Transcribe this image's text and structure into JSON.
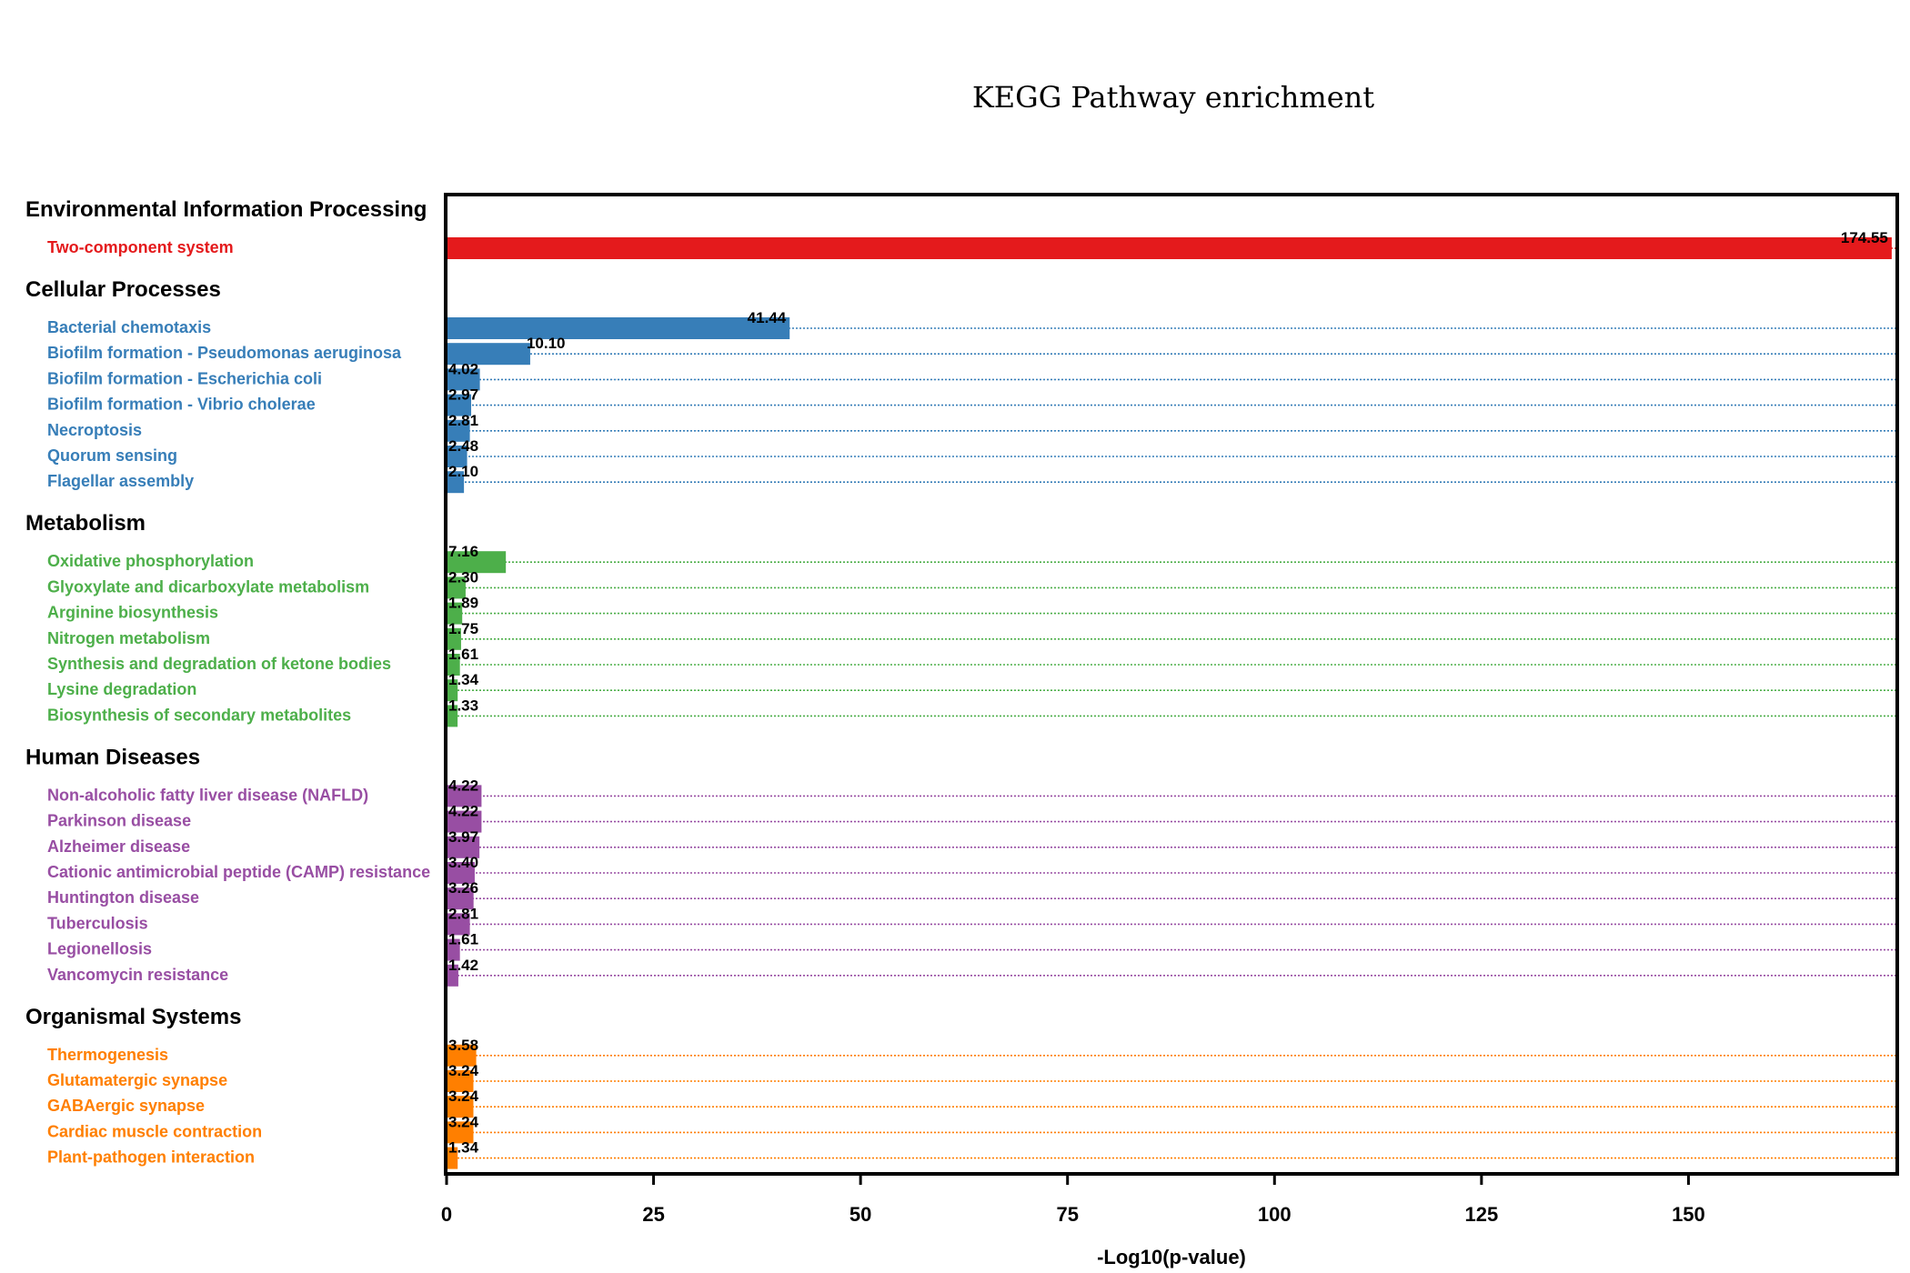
{
  "chart_data": {
    "type": "bar",
    "orientation": "horizontal",
    "title": "KEGG Pathway enrichment",
    "xlabel": "-Log10(p-value)",
    "xlim": [
      0,
      175
    ],
    "xticks": [
      0,
      25,
      50,
      75,
      100,
      125,
      150
    ],
    "grid": false,
    "groups": [
      {
        "name": "Environmental Information Processing",
        "color": "#e41a1c",
        "items": [
          {
            "label": "Two-component system",
            "value": 174.55,
            "value_label": "174.55"
          }
        ]
      },
      {
        "name": "Cellular Processes",
        "color": "#377eb8",
        "items": [
          {
            "label": "Bacterial chemotaxis",
            "value": 41.44,
            "value_label": "41.44"
          },
          {
            "label": "Biofilm formation - Pseudomonas aeruginosa",
            "value": 10.1,
            "value_label": "10.10"
          },
          {
            "label": "Biofilm formation - Escherichia coli",
            "value": 4.02,
            "value_label": "4.02"
          },
          {
            "label": "Biofilm formation - Vibrio cholerae",
            "value": 2.97,
            "value_label": "2.97"
          },
          {
            "label": "Necroptosis",
            "value": 2.81,
            "value_label": "2.81"
          },
          {
            "label": "Quorum sensing",
            "value": 2.48,
            "value_label": "2.48"
          },
          {
            "label": "Flagellar assembly",
            "value": 2.1,
            "value_label": "2.10"
          }
        ]
      },
      {
        "name": "Metabolism",
        "color": "#4daf4a",
        "items": [
          {
            "label": "Oxidative phosphorylation",
            "value": 7.16,
            "value_label": "7.16"
          },
          {
            "label": "Glyoxylate and dicarboxylate metabolism",
            "value": 2.3,
            "value_label": "2.30"
          },
          {
            "label": "Arginine biosynthesis",
            "value": 1.89,
            "value_label": "1.89"
          },
          {
            "label": "Nitrogen metabolism",
            "value": 1.75,
            "value_label": "1.75"
          },
          {
            "label": "Synthesis and degradation of ketone bodies",
            "value": 1.61,
            "value_label": "1.61"
          },
          {
            "label": "Lysine degradation",
            "value": 1.34,
            "value_label": "1.34"
          },
          {
            "label": "Biosynthesis of secondary metabolites",
            "value": 1.33,
            "value_label": "1.33"
          }
        ]
      },
      {
        "name": "Human Diseases",
        "color": "#984ea3",
        "items": [
          {
            "label": "Non-alcoholic fatty liver disease (NAFLD)",
            "value": 4.22,
            "value_label": "4.22"
          },
          {
            "label": "Parkinson disease",
            "value": 4.22,
            "value_label": "4.22"
          },
          {
            "label": "Alzheimer disease",
            "value": 3.97,
            "value_label": "3.97"
          },
          {
            "label": "Cationic antimicrobial peptide (CAMP) resistance",
            "value": 3.4,
            "value_label": "3.40"
          },
          {
            "label": "Huntington disease",
            "value": 3.26,
            "value_label": "3.26"
          },
          {
            "label": "Tuberculosis",
            "value": 2.81,
            "value_label": "2.81"
          },
          {
            "label": "Legionellosis",
            "value": 1.61,
            "value_label": "1.61"
          },
          {
            "label": "Vancomycin resistance",
            "value": 1.42,
            "value_label": "1.42"
          }
        ]
      },
      {
        "name": "Organismal Systems",
        "color": "#ff7f00",
        "items": [
          {
            "label": "Thermogenesis",
            "value": 3.58,
            "value_label": "3.58"
          },
          {
            "label": "Glutamatergic synapse",
            "value": 3.24,
            "value_label": "3.24"
          },
          {
            "label": "GABAergic synapse",
            "value": 3.24,
            "value_label": "3.24"
          },
          {
            "label": "Cardiac muscle contraction",
            "value": 3.24,
            "value_label": "3.24"
          },
          {
            "label": "Plant-pathogen interaction",
            "value": 1.34,
            "value_label": "1.34"
          }
        ]
      }
    ]
  }
}
